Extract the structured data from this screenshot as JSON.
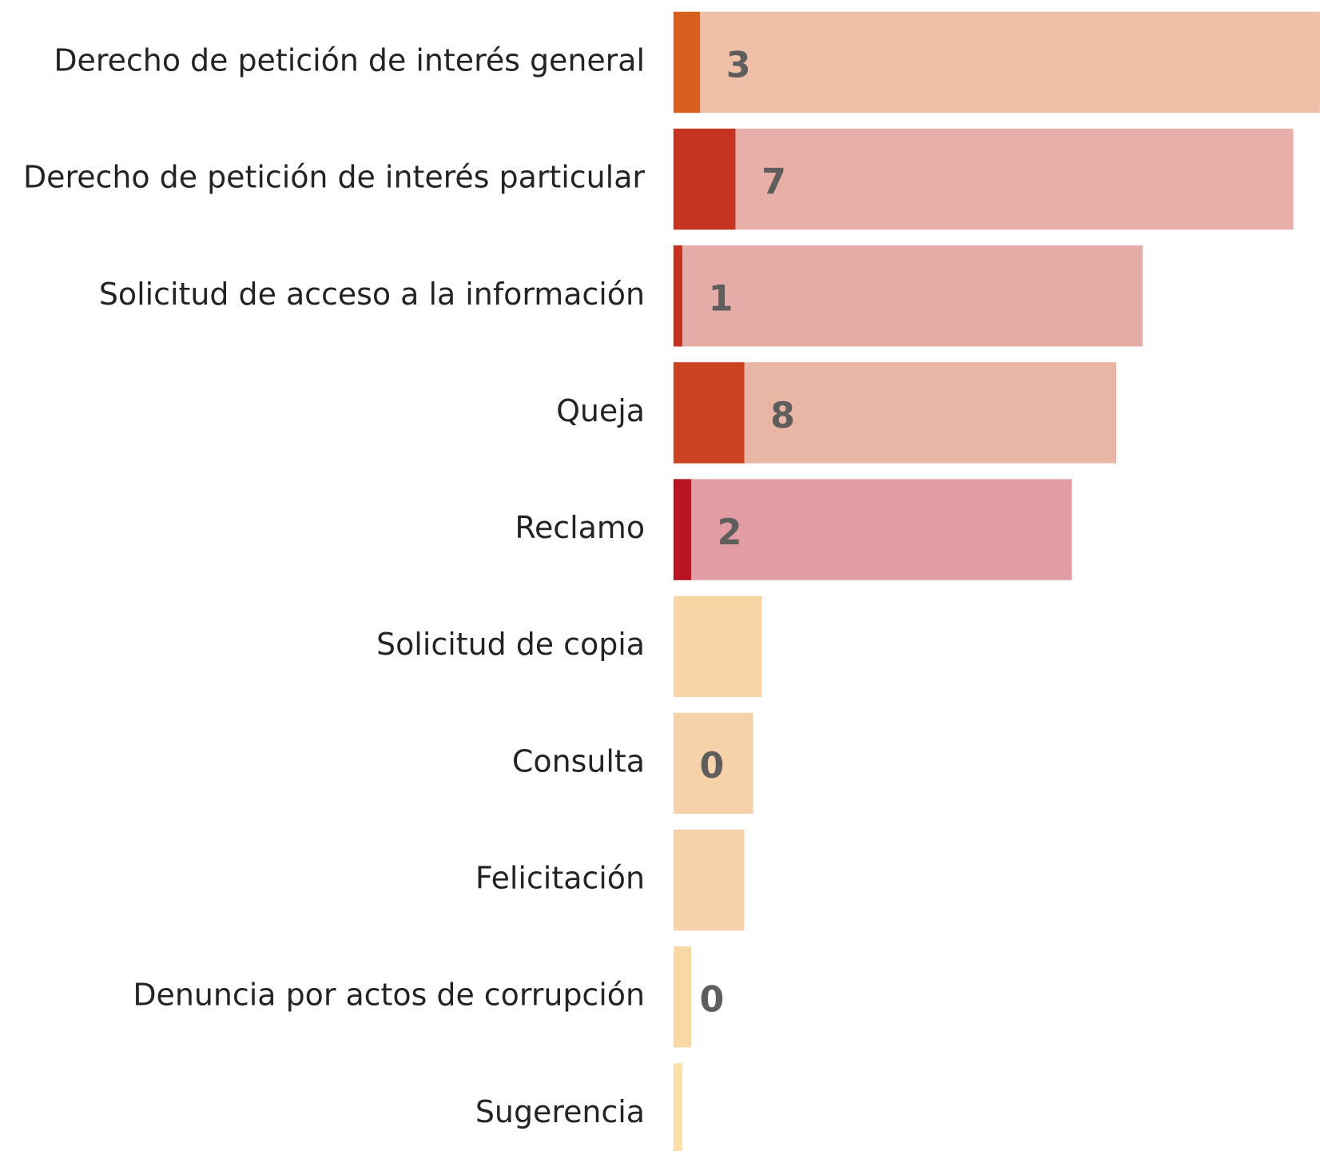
{
  "chart_data": {
    "type": "bar",
    "categories": [
      "Derecho de petición de interés general",
      "Derecho de petición de interés particular",
      "Solicitud de acceso a la información",
      "Queja",
      "Reclamo",
      "Solicitud de copia",
      "Consulta",
      "Felicitación",
      "Denuncia por actos de corrupción",
      "Sugerencia"
    ],
    "series": [
      {
        "colors": [
          "#efc0a7",
          "#e8aea8",
          "#e5aca7",
          "#e9b5a4",
          "#e29ca3",
          "#f8d6a6",
          "#f5d2aa",
          "#f5d2a7",
          "#f8d9a4",
          "#fbe0a5"
        ],
        "values": [
          73,
          70,
          53,
          50,
          45,
          10,
          9,
          8,
          2,
          1
        ]
      },
      {
        "colors": [
          "#d95f20",
          "#c43421",
          "#c7311f",
          "#cb4322",
          "#b81422",
          null,
          null,
          null,
          null,
          null
        ],
        "values": [
          3,
          7,
          1,
          8,
          2,
          null,
          0,
          null,
          0,
          null
        ]
      }
    ]
  }
}
